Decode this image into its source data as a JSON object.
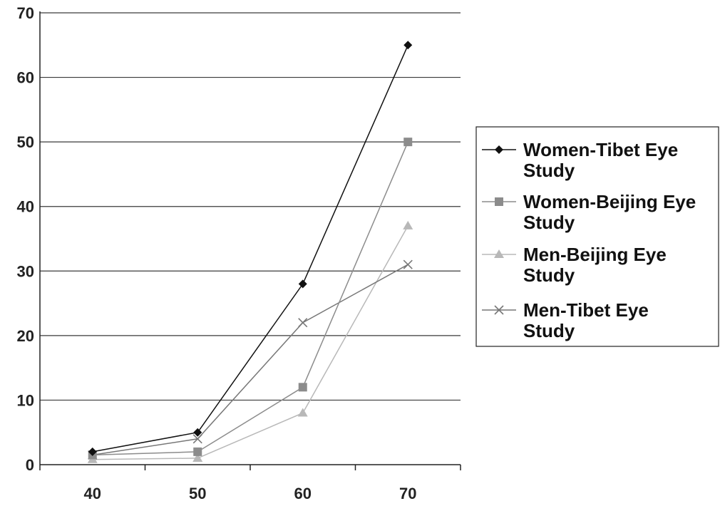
{
  "chart_data": {
    "type": "line",
    "title": "",
    "xlabel": "",
    "ylabel": "",
    "x": [
      40,
      50,
      60,
      70
    ],
    "x_tick_labels": [
      "40",
      "50",
      "60",
      "70"
    ],
    "ylim": [
      0,
      70
    ],
    "y_ticks": [
      0,
      10,
      20,
      30,
      40,
      50,
      60,
      70
    ],
    "y_tick_labels": [
      "0",
      "10",
      "20",
      "30",
      "40",
      "50",
      "60",
      "70"
    ],
    "grid": "horizontal",
    "legend_position": "right",
    "series": [
      {
        "name": "Women-Tibet Eye Study",
        "legend_lines": [
          "Women-Tibet Eye",
          "Study"
        ],
        "values": [
          2,
          5,
          28,
          65
        ],
        "color": "#111111",
        "marker": "diamond"
      },
      {
        "name": "Women-Beijing Eye Study",
        "legend_lines": [
          "Women-Beijing Eye",
          "Study"
        ],
        "values": [
          1.5,
          2,
          12,
          50
        ],
        "color": "#8c8c8c",
        "marker": "square"
      },
      {
        "name": "Men-Beijing Eye Study",
        "legend_lines": [
          "Men-Beijing Eye",
          "Study"
        ],
        "values": [
          0.8,
          1,
          8,
          37
        ],
        "color": "#b8b8b8",
        "marker": "triangle"
      },
      {
        "name": "Men-Tibet Eye Study",
        "legend_lines": [
          "Men-Tibet Eye",
          "Study"
        ],
        "values": [
          1.5,
          4,
          22,
          31
        ],
        "color": "#777777",
        "marker": "x"
      }
    ]
  }
}
